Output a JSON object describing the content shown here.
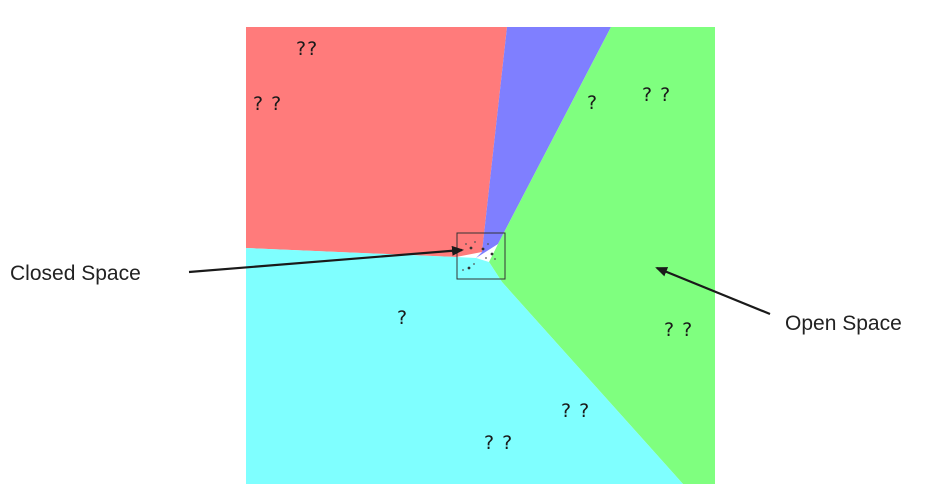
{
  "colors": {
    "red_region": "#ff7b7b",
    "blue_region": "#7f7fff",
    "green_region": "#7fff7f",
    "cyan_region": "#7fffff",
    "arrow": "#1a1a1a"
  },
  "labels": {
    "closed_space": "Closed Space",
    "open_space": "Open Space"
  },
  "question_marks": {
    "red_top": "??",
    "red_left": "? ?",
    "blue": "?",
    "green_top": "? ?",
    "green_right": "? ?",
    "cyan_center": "?",
    "cyan_bottom_right": "? ?",
    "cyan_bottom": "? ?"
  }
}
